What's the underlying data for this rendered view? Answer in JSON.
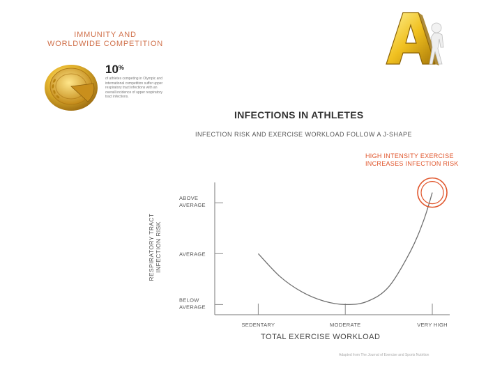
{
  "infographic": {
    "title_line1": "IMMUNITY AND",
    "title_line2": "WORLDWIDE COMPETITION",
    "stat_value": "10",
    "stat_unit": "%",
    "stat_description": "of athletes competing in Olympic and international competition suffer upper respiratory tract infections with an overall incidence of upper respiratory tract infections."
  },
  "colors": {
    "accent": "#e0552b",
    "title_orange": "#d0704a",
    "gold": "#d9a520",
    "curve": "#6e6e6e"
  },
  "logo": {
    "icon": "gold-letter-a-logo"
  },
  "medal": {
    "icon": "gold-medal-icon"
  },
  "chart_data": {
    "type": "line",
    "title": "INFECTIONS IN ATHLETES",
    "subtitle": "INFECTION RISK AND EXERCISE WORKLOAD FOLLOW A J-SHAPE",
    "xlabel": "TOTAL EXERCISE WORKLOAD",
    "ylabel_line1": "RESPIRATORY TRACT",
    "ylabel_line2": "INFECTION RISK",
    "x_ticks": [
      "SEDENTARY",
      "MODERATE",
      "VERY HIGH"
    ],
    "y_ticks": [
      {
        "line1": "BELOW",
        "line2": "AVERAGE",
        "value": 0
      },
      {
        "line1": "AVERAGE",
        "line2": "",
        "value": 1
      },
      {
        "line1": "ABOVE",
        "line2": "AVERAGE",
        "value": 2
      }
    ],
    "x_range": [
      -0.5,
      2.2
    ],
    "y_range": [
      -0.2,
      2.4
    ],
    "curve": [
      {
        "x": 0.0,
        "y": 1.0
      },
      {
        "x": 0.25,
        "y": 0.55
      },
      {
        "x": 0.5,
        "y": 0.25
      },
      {
        "x": 0.75,
        "y": 0.07
      },
      {
        "x": 1.0,
        "y": 0.0
      },
      {
        "x": 1.25,
        "y": 0.06
      },
      {
        "x": 1.5,
        "y": 0.35
      },
      {
        "x": 1.75,
        "y": 1.05
      },
      {
        "x": 1.9,
        "y": 1.65
      },
      {
        "x": 2.0,
        "y": 2.2
      }
    ],
    "highlight": {
      "x": 2.0,
      "y": 2.2
    },
    "annotation_line1": "HIGH INTENSITY EXERCISE",
    "annotation_line2": "INCREASES INFECTION RISK",
    "source": "Adapted from The Journal of Exercise and Sports Nutrition"
  }
}
